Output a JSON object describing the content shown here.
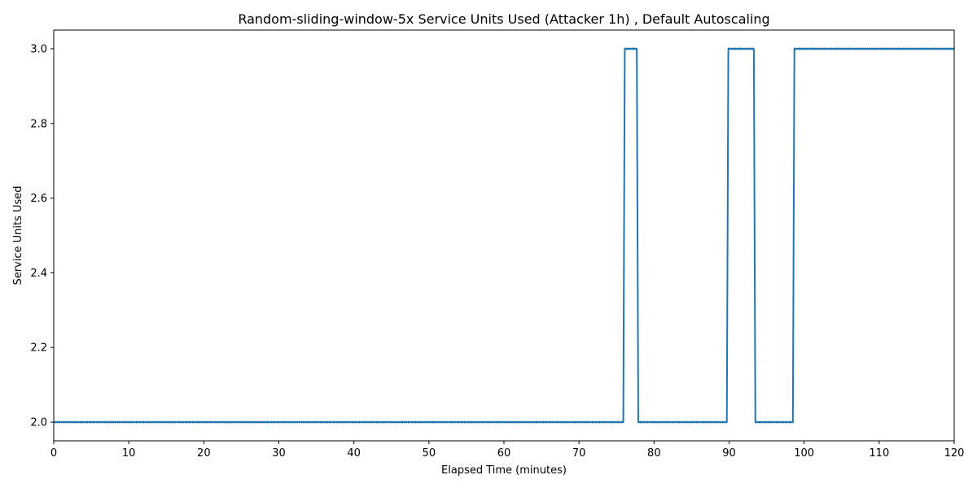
{
  "chart_data": {
    "type": "line",
    "title": "Random-sliding-window-5x Service Units Used (Attacker 1h) , Default Autoscaling",
    "xlabel": "Elapsed Time (minutes)",
    "ylabel": "Service Units Used",
    "xlim": [
      0,
      120
    ],
    "ylim": [
      1.95,
      3.05
    ],
    "xticks": [
      0,
      10,
      20,
      30,
      40,
      50,
      60,
      70,
      80,
      90,
      100,
      110,
      120
    ],
    "yticks": [
      2.0,
      2.2,
      2.4,
      2.6,
      2.8,
      3.0
    ],
    "xtick_labels": [
      "0",
      "10",
      "20",
      "30",
      "40",
      "50",
      "60",
      "70",
      "80",
      "90",
      "100",
      "110",
      "120"
    ],
    "ytick_labels": [
      "2.0",
      "2.2",
      "2.4",
      "2.6",
      "2.8",
      "3.0"
    ],
    "grid": false,
    "colors": {
      "line": "#1f77b4",
      "axes": "#000000",
      "background": "#ffffff"
    },
    "series": [
      {
        "x": [
          0,
          75.9,
          76.1,
          77.7,
          77.9,
          89.7,
          89.9,
          93.3,
          93.5,
          98.5,
          98.7,
          120
        ],
        "values": [
          2,
          2,
          3,
          3,
          2,
          2,
          3,
          3,
          2,
          2,
          3,
          3
        ]
      }
    ]
  }
}
